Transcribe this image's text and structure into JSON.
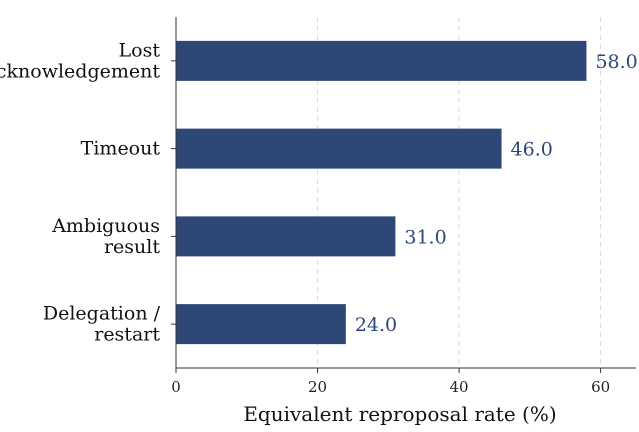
{
  "chart_data": {
    "type": "bar",
    "orientation": "horizontal",
    "categories": [
      [
        "Lost",
        "acknowledgement"
      ],
      [
        "Timeout"
      ],
      [
        "Ambiguous",
        "result"
      ],
      [
        "Delegation /",
        "restart"
      ]
    ],
    "values": [
      58.0,
      46.0,
      31.0,
      24.0
    ],
    "value_labels": [
      "58.0",
      "46.0",
      "31.0",
      "24.0"
    ],
    "xlabel": "Equivalent reproposal rate (%)",
    "ylabel": "",
    "title": "",
    "xlim": [
      0,
      65
    ],
    "xticks": [
      0,
      20,
      40,
      60
    ],
    "xtick_labels": [
      "0",
      "20",
      "40",
      "60"
    ],
    "grid": "vertical dashed",
    "bar_color": "#2d4776",
    "label_color": "#2d4776",
    "grid_color": "#d9d9d9"
  }
}
